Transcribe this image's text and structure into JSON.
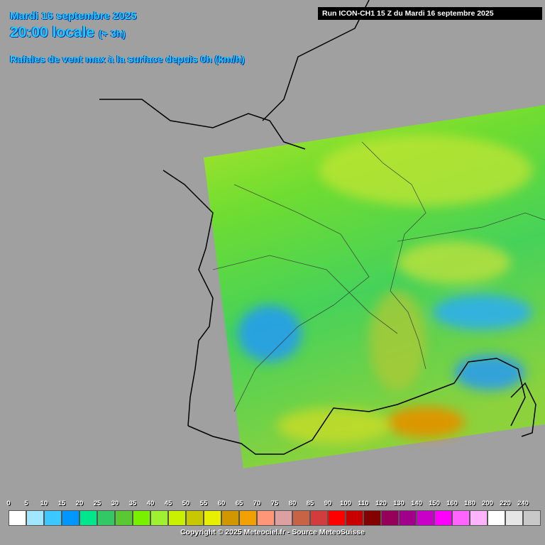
{
  "header": {
    "date": "Mardi 16 septembre 2025",
    "time": "20:00 locale",
    "offset": "(+ 3h)",
    "parameter": "Rafales de vent max à la surface depuis 0h (km/h)",
    "run": "Run ICON-CH1 15 Z du Mardi 16 septembre 2025"
  },
  "legend": {
    "items": [
      {
        "value": 0,
        "color": "#ffffff"
      },
      {
        "value": 5,
        "color": "#a0e6ff"
      },
      {
        "value": 10,
        "color": "#3cc8ff"
      },
      {
        "value": 15,
        "color": "#0096ff"
      },
      {
        "value": 20,
        "color": "#00e68c"
      },
      {
        "value": 25,
        "color": "#32c864"
      },
      {
        "value": 30,
        "color": "#5ac832"
      },
      {
        "value": 35,
        "color": "#78f000"
      },
      {
        "value": 40,
        "color": "#a0f032"
      },
      {
        "value": 45,
        "color": "#c8f000"
      },
      {
        "value": 50,
        "color": "#c8c800"
      },
      {
        "value": 55,
        "color": "#e6f000"
      },
      {
        "value": 60,
        "color": "#d29600"
      },
      {
        "value": 65,
        "color": "#f0a000"
      },
      {
        "value": 70,
        "color": "#ff9678"
      },
      {
        "value": 75,
        "color": "#dca0a0"
      },
      {
        "value": 80,
        "color": "#c86446"
      },
      {
        "value": 85,
        "color": "#d23c3c"
      },
      {
        "value": 90,
        "color": "#ff0000"
      },
      {
        "value": 100,
        "color": "#c80000"
      },
      {
        "value": 110,
        "color": "#820000"
      },
      {
        "value": 120,
        "color": "#96005a"
      },
      {
        "value": 130,
        "color": "#a0008c"
      },
      {
        "value": 140,
        "color": "#c800c8"
      },
      {
        "value": 150,
        "color": "#ff00ff"
      },
      {
        "value": 160,
        "color": "#ff64ff"
      },
      {
        "value": 180,
        "color": "#ffb4ff"
      },
      {
        "value": 200,
        "color": "#ffffff"
      },
      {
        "value": 220,
        "color": "#e6e6e6"
      },
      {
        "value": 240,
        "color": "#c8c8c8"
      }
    ]
  },
  "footer": {
    "copyright": "Copyright © 2025 Meteociel.fr - Source MeteoSuisse"
  }
}
